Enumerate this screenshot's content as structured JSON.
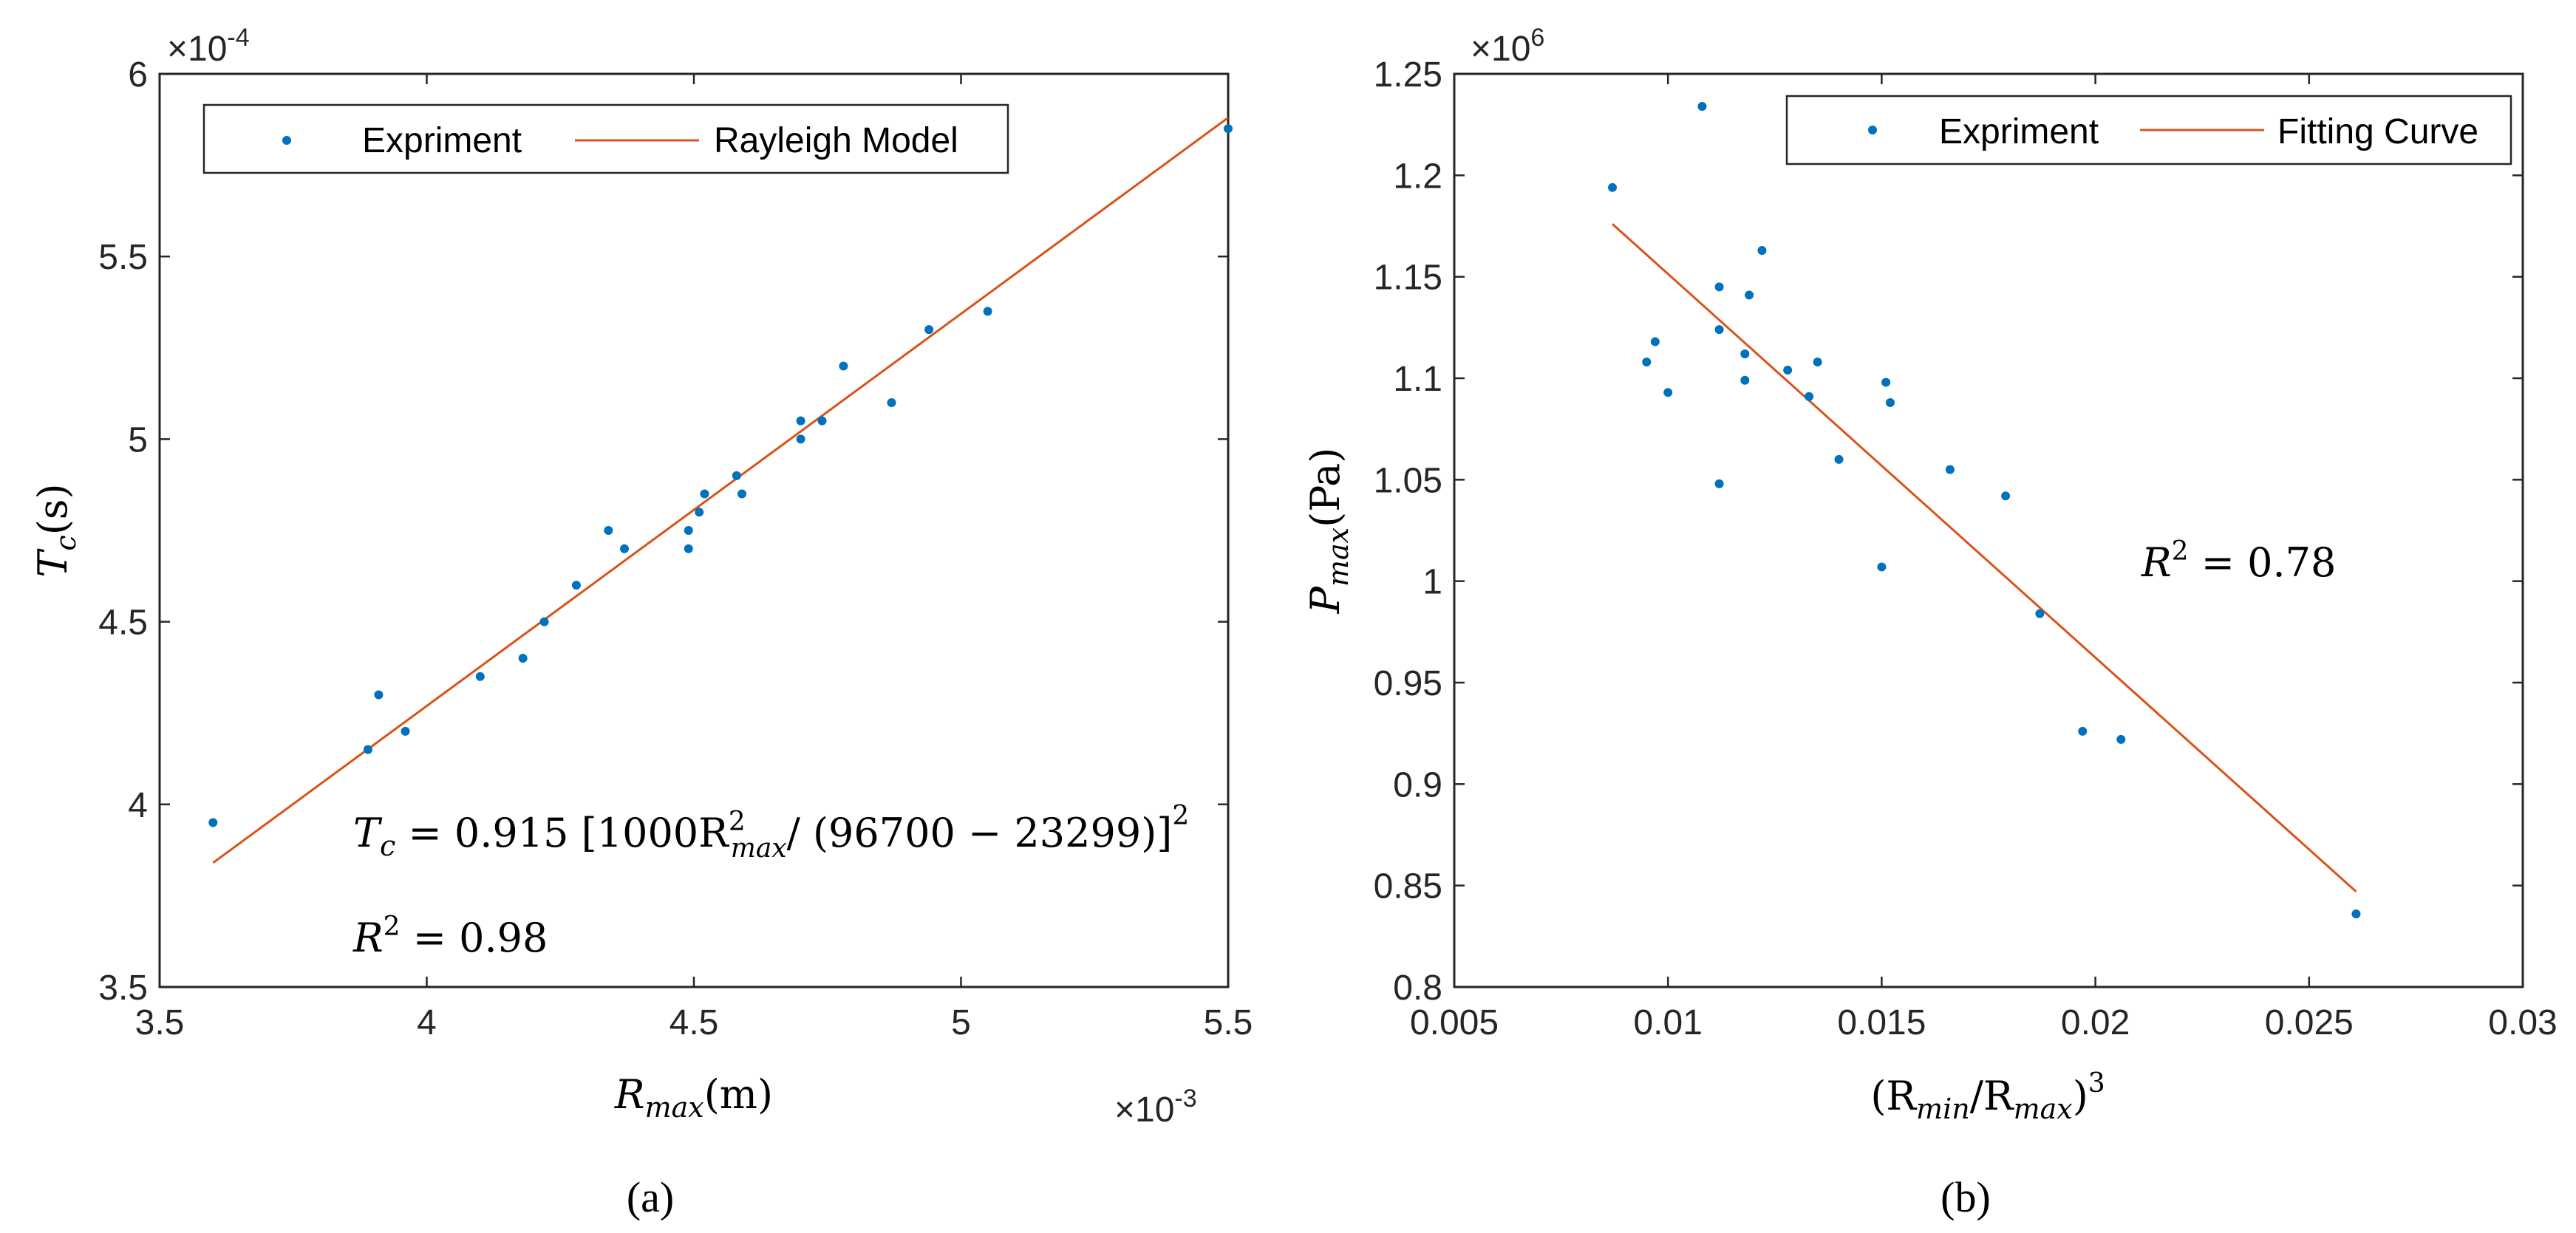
{
  "chart_data": [
    {
      "id": "a",
      "type": "scatter",
      "caption": "(a)",
      "xlabel": {
        "var": "R",
        "sub": "max",
        "unit": "(m)"
      },
      "ylabel": {
        "var": "T",
        "sub": "c",
        "unit": "(s)"
      },
      "xlim": [
        3.5,
        5.5
      ],
      "ylim": [
        3.5,
        6
      ],
      "xticks": [
        3.5,
        4,
        4.5,
        5,
        5.5
      ],
      "yticks": [
        3.5,
        4,
        4.5,
        5,
        5.5,
        6
      ],
      "x_multiplier": {
        "base": "×10",
        "exp": "-3"
      },
      "y_multiplier": {
        "base": "×10",
        "exp": "-4"
      },
      "legend": {
        "placement": "top-left",
        "entries": [
          "Expriment",
          "Rayleigh Model"
        ]
      },
      "series": [
        {
          "name": "Expriment",
          "mode": "markers",
          "color": "#0072BD",
          "points": [
            [
              3.6,
              3.95
            ],
            [
              3.89,
              4.15
            ],
            [
              3.91,
              4.3
            ],
            [
              3.96,
              4.2
            ],
            [
              4.1,
              4.35
            ],
            [
              4.18,
              4.4
            ],
            [
              4.22,
              4.5
            ],
            [
              4.28,
              4.6
            ],
            [
              4.34,
              4.75
            ],
            [
              4.37,
              4.7
            ],
            [
              4.49,
              4.75
            ],
            [
              4.49,
              4.7
            ],
            [
              4.51,
              4.8
            ],
            [
              4.52,
              4.85
            ],
            [
              4.58,
              4.9
            ],
            [
              4.59,
              4.85
            ],
            [
              4.7,
              5.05
            ],
            [
              4.7,
              5.0
            ],
            [
              4.74,
              5.05
            ],
            [
              4.78,
              5.2
            ],
            [
              4.87,
              5.1
            ],
            [
              4.94,
              5.3
            ],
            [
              5.05,
              5.35
            ],
            [
              5.5,
              5.85
            ]
          ]
        },
        {
          "name": "Rayleigh Model",
          "mode": "line",
          "color": "#D95319",
          "points": [
            [
              3.6,
              3.84
            ],
            [
              5.5,
              5.88
            ]
          ]
        }
      ],
      "annotations": [
        {
          "id": "eq",
          "parts": [
            "T",
            "c",
            " = 0.915 [1000R",
            "2",
            "max",
            "/ (96700 − 23299)]",
            "2"
          ]
        },
        {
          "id": "r2",
          "parts": [
            "R",
            "2",
            " = 0.98"
          ]
        }
      ]
    },
    {
      "id": "b",
      "type": "scatter",
      "caption": "(b)",
      "xlabel": {
        "pre": "(R",
        "sub1": "min",
        "mid": "/R",
        "sub2": "max",
        "post": ")",
        "sup": "3"
      },
      "ylabel": {
        "var": "P",
        "sub": "max",
        "unit": "(Pa)"
      },
      "xlim": [
        0.005,
        0.03
      ],
      "ylim": [
        0.8,
        1.25
      ],
      "xticks": [
        0.005,
        0.01,
        0.015,
        0.02,
        0.025,
        0.03
      ],
      "xtick_labels": [
        "0.005",
        "0.01",
        "0.015",
        "0.02",
        "0.025",
        "0.03"
      ],
      "yticks": [
        0.8,
        0.85,
        0.9,
        0.95,
        1,
        1.05,
        1.1,
        1.15,
        1.2,
        1.25
      ],
      "ytick_labels": [
        "0.8",
        "0.85",
        "0.9",
        "0.95",
        "1",
        "1.05",
        "1.1",
        "1.15",
        "1.2",
        "1.25"
      ],
      "y_multiplier": {
        "base": "×10",
        "exp": "6"
      },
      "legend": {
        "placement": "top-right",
        "entries": [
          "Expriment",
          "Fitting Curve"
        ]
      },
      "series": [
        {
          "name": "Expriment",
          "mode": "markers",
          "color": "#0072BD",
          "points": [
            [
              0.0087,
              1.194
            ],
            [
              0.0108,
              1.234
            ],
            [
              0.0095,
              1.108
            ],
            [
              0.0097,
              1.118
            ],
            [
              0.01,
              1.093
            ],
            [
              0.0112,
              1.145
            ],
            [
              0.0112,
              1.124
            ],
            [
              0.0112,
              1.048
            ],
            [
              0.0118,
              1.112
            ],
            [
              0.0118,
              1.099
            ],
            [
              0.0119,
              1.141
            ],
            [
              0.0122,
              1.163
            ],
            [
              0.0128,
              1.104
            ],
            [
              0.0133,
              1.091
            ],
            [
              0.0135,
              1.108
            ],
            [
              0.014,
              1.06
            ],
            [
              0.015,
              1.007
            ],
            [
              0.0151,
              1.098
            ],
            [
              0.0152,
              1.088
            ],
            [
              0.0166,
              1.055
            ],
            [
              0.0179,
              1.042
            ],
            [
              0.0187,
              0.984
            ],
            [
              0.0197,
              0.926
            ],
            [
              0.0206,
              0.922
            ],
            [
              0.0261,
              0.836
            ]
          ]
        },
        {
          "name": "Fitting Curve",
          "mode": "line",
          "color": "#D95319",
          "points": [
            [
              0.0087,
              1.176
            ],
            [
              0.0261,
              0.847
            ]
          ]
        }
      ],
      "annotations": [
        {
          "id": "r2",
          "parts": [
            "R",
            "2",
            " = 0.78"
          ]
        }
      ]
    }
  ]
}
